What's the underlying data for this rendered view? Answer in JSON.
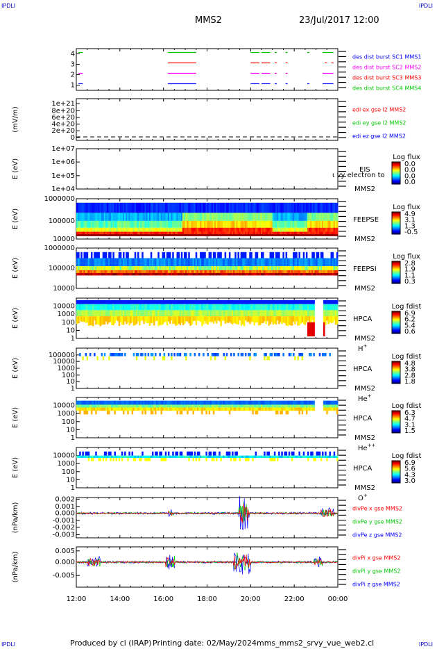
{
  "corners": {
    "tl": "IPDLI",
    "tr": "IPDLI",
    "bl": "IPDLI",
    "br": "IPDLI"
  },
  "header": {
    "spacecraft": "MMS2",
    "date": "23/Jul/2017 12:00"
  },
  "footer": {
    "produced": "Produced by cl (IRAP)",
    "printing": "Printing date: 02/May/2024",
    "file": "mms_mms2_srvy_vue_web2.cl"
  },
  "colors": {
    "red": "#ff0000",
    "green": "#00c800",
    "blue": "#0000ff",
    "magenta": "#ff00ff",
    "dark": "#000000"
  },
  "chart_data": [
    {
      "type": "line",
      "id": "burst",
      "yticks": [
        "1",
        "2",
        "3",
        "4"
      ],
      "legend": [
        {
          "text": "des dist burst SC1 MMS1",
          "color": "#0000ff"
        },
        {
          "text": "des dist burst SC2 MMS2",
          "color": "#ff00ff"
        },
        {
          "text": "des dist burst SC3 MMS3",
          "color": "#ff0000"
        },
        {
          "text": "des dist burst SC4 MMS4",
          "color": "#00c800"
        }
      ],
      "series": [
        {
          "name": "des dist burst SC4 MMS4",
          "level": 4,
          "color": "#00c800",
          "intervals": [
            [
              12.1,
              12.3
            ],
            [
              16.2,
              17.5
            ],
            [
              20.0,
              20.4
            ],
            [
              20.5,
              20.9
            ],
            [
              21.1,
              21.2
            ],
            [
              21.6,
              21.7
            ],
            [
              22.6,
              22.7
            ],
            [
              23.3,
              23.8
            ]
          ]
        },
        {
          "name": "des dist burst SC3 MMS3",
          "level": 3,
          "color": "#ff0000",
          "intervals": [
            [
              16.2,
              17.5
            ],
            [
              20.0,
              20.4
            ],
            [
              20.5,
              20.9
            ],
            [
              21.1,
              21.2
            ],
            [
              21.6,
              21.7
            ],
            [
              23.4,
              23.5
            ],
            [
              23.7,
              23.8
            ]
          ]
        },
        {
          "name": "des dist burst SC2 MMS2",
          "level": 2,
          "color": "#ff00ff",
          "intervals": [
            [
              12.1,
              12.3
            ],
            [
              16.2,
              17.5
            ],
            [
              20.0,
              20.4
            ],
            [
              20.5,
              20.9
            ],
            [
              21.1,
              21.2
            ],
            [
              21.6,
              21.7
            ],
            [
              23.3,
              23.8
            ]
          ]
        },
        {
          "name": "des dist burst SC1 MMS1",
          "level": 1,
          "color": "#0000ff",
          "intervals": [
            [
              12.1,
              12.3
            ],
            [
              16.2,
              17.5
            ],
            [
              20.0,
              20.4
            ],
            [
              20.5,
              20.9
            ],
            [
              21.1,
              21.2
            ],
            [
              21.6,
              21.7
            ],
            [
              22.6,
              22.7
            ],
            [
              23.3,
              23.8
            ]
          ]
        }
      ]
    },
    {
      "type": "line",
      "id": "edi",
      "ylabel": "(mV/m)",
      "yticks": [
        "0",
        "2e+20",
        "4e+20",
        "6e+20",
        "8e+20",
        "1e+21"
      ],
      "ylim": [
        0,
        1e+21
      ],
      "legend": [
        {
          "text": "edi ex gse l2 MMS2",
          "color": "#ff0000"
        },
        {
          "text": "edi ey gse l2 MMS2",
          "color": "#00c800"
        },
        {
          "text": "edi ez gse l2 MMS2",
          "color": "#0000ff"
        }
      ]
    },
    {
      "type": "heatmap",
      "id": "eis",
      "ylabel": "E (eV)",
      "yticks": [
        "1e+04",
        "1e+05",
        "1e+06",
        "1e+07"
      ],
      "name": "EIS",
      "sc": "MMS2",
      "overlay": "ι vy electron to",
      "cbar_title": "Log flux",
      "cbar_ticks": [
        "0.0",
        "0.0",
        "0.0",
        "0.0"
      ]
    },
    {
      "type": "heatmap",
      "id": "feepse",
      "ylabel": "E (eV)",
      "yticks": [
        "10000",
        "100000",
        "1000000"
      ],
      "name": "FEEPSE",
      "sc": "MMS2",
      "cbar_title": "Log flux",
      "cbar_ticks": [
        "4.9",
        "3.1",
        "1.3",
        "-0.5"
      ]
    },
    {
      "type": "heatmap",
      "id": "feepsi",
      "ylabel": "E (eV)",
      "yticks": [
        "10000",
        "100000",
        "1000000"
      ],
      "name": "FEEPSI",
      "sc": "MMS2",
      "cbar_title": "Log flux",
      "cbar_ticks": [
        "2.8",
        "1.9",
        "1.1",
        "0.3"
      ]
    },
    {
      "type": "heatmap",
      "id": "hpca_h",
      "ylabel": "E (eV)",
      "yticks": [
        "1",
        "10",
        "100",
        "1000",
        "10000"
      ],
      "name": "HPCA",
      "sc": "MMS2",
      "ion": "H",
      "ion_sup": "+",
      "cbar_title": "Log fdist",
      "cbar_ticks": [
        "6.9",
        "6.2",
        "5.4",
        "0.6"
      ]
    },
    {
      "type": "heatmap",
      "id": "hpca_he",
      "ylabel": "E (eV)",
      "yticks": [
        "1",
        "10",
        "100",
        "1000",
        "10000",
        "100000"
      ],
      "name": "HPCA",
      "sc": "MMS2",
      "ion": "He",
      "ion_sup": "+",
      "cbar_title": "Log fdist",
      "cbar_ticks": [
        "4.8",
        "3.8",
        "2.8",
        "1.8"
      ]
    },
    {
      "type": "heatmap",
      "id": "hpca_hepp",
      "ylabel": "E (eV)",
      "yticks": [
        "1",
        "10",
        "100",
        "1000",
        "10000"
      ],
      "name": "HPCA",
      "sc": "MMS2",
      "ion": "He",
      "ion_sup": "++",
      "cbar_title": "Log fdist",
      "cbar_ticks": [
        "6.3",
        "4.7",
        "3.1",
        "1.5"
      ]
    },
    {
      "type": "heatmap",
      "id": "hpca_o",
      "ylabel": "E (eV)",
      "yticks": [
        "1",
        "10",
        "100",
        "1000",
        "10000"
      ],
      "name": "HPCA",
      "sc": "MMS2",
      "ion": "O",
      "ion_sup": "+",
      "cbar_title": "Log fdist",
      "cbar_ticks": [
        "6.9",
        "5.6",
        "4.3",
        "3.0"
      ]
    },
    {
      "type": "line",
      "id": "divpe",
      "ylabel": "(nPa/km)",
      "yticks": [
        "-0.003",
        "-0.002",
        "-0.001",
        "0.000",
        "0.001",
        "0.002"
      ],
      "ylim": [
        -0.0035,
        0.002
      ],
      "legend": [
        {
          "text": "divPe x gse MMS2",
          "color": "#ff0000"
        },
        {
          "text": "divPe y gse MMS2",
          "color": "#00c800"
        },
        {
          "text": "divPe z gse MMS2",
          "color": "#0000ff"
        }
      ]
    },
    {
      "type": "line",
      "id": "divpi",
      "ylabel": "(nPa/km)",
      "yticks": [
        "-0.005",
        "0.000",
        "0.005"
      ],
      "ylim": [
        -0.0095,
        0.0075
      ],
      "legend": [
        {
          "text": "divPi x gse MMS2",
          "color": "#ff0000"
        },
        {
          "text": "divPi y gse MMS2",
          "color": "#00c800"
        },
        {
          "text": "divPi z gse MMS2",
          "color": "#0000ff"
        }
      ]
    }
  ],
  "xaxis": {
    "ticks": [
      "12:00",
      "14:00",
      "16:00",
      "18:00",
      "20:00",
      "22:00",
      "00:00"
    ],
    "xlim": [
      12,
      24
    ]
  }
}
